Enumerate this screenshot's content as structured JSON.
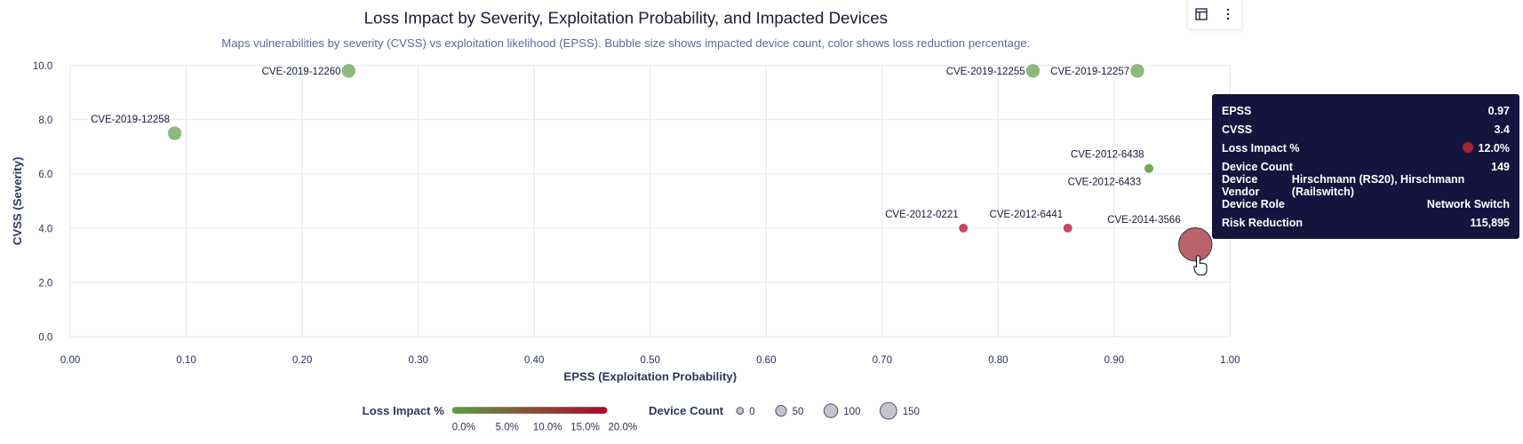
{
  "toolbar": {
    "table_icon": "table-icon",
    "menu_icon": "more-vertical-icon"
  },
  "chart_data": {
    "type": "scatter",
    "title": "Loss Impact by Severity, Exploitation Probability, and Impacted Devices",
    "subtitle": "Maps vulnerabilities by severity (CVSS) vs exploitation likelihood (EPSS). Bubble size shows impacted device count, color shows loss reduction percentage.",
    "xlabel": "EPSS (Exploitation Probability)",
    "ylabel": "CVSS (Severity)",
    "xlim": [
      0,
      1
    ],
    "ylim": [
      0,
      10
    ],
    "xticks": [
      "0.00",
      "0.10",
      "0.20",
      "0.30",
      "0.40",
      "0.50",
      "0.60",
      "0.70",
      "0.80",
      "0.90",
      "1.00"
    ],
    "yticks": [
      "0.0",
      "2.0",
      "4.0",
      "6.0",
      "8.0",
      "10.0"
    ],
    "grid": true,
    "points": [
      {
        "label": "CVE-2019-12260",
        "epss": 0.24,
        "cvss": 9.8,
        "color": "#8cb87c"
      },
      {
        "label": "CVE-2019-12258",
        "epss": 0.09,
        "cvss": 7.5,
        "color": "#8cb87c"
      },
      {
        "label": "CVE-2019-12255",
        "epss": 0.83,
        "cvss": 9.8,
        "color": "#8cb87c"
      },
      {
        "label": "CVE-2019-12257",
        "epss": 0.92,
        "cvss": 9.8,
        "color": "#8cb87c"
      },
      {
        "label": "CVE-2012-6438",
        "epss": 0.93,
        "cvss": 6.2,
        "color": "#6fa85a"
      },
      {
        "label": "CVE-2012-6433",
        "epss": 0.93,
        "cvss": 6.2,
        "color": "#6fa85a"
      },
      {
        "label": "CVE-2012-0221",
        "epss": 0.77,
        "cvss": 4.0,
        "color": "#c9485b"
      },
      {
        "label": "CVE-2012-6441",
        "epss": 0.86,
        "cvss": 4.0,
        "color": "#c9485b"
      },
      {
        "label": "CVE-2014-3566",
        "epss": 0.97,
        "cvss": 3.4,
        "color": "#b9646a",
        "device_count": 149,
        "loss_impact": "12.0%"
      }
    ],
    "legend": {
      "color_title": "Loss Impact %",
      "color_ticks": [
        "0.0%",
        "5.0%",
        "10.0%",
        "15.0%",
        "20.0%"
      ],
      "color_range": [
        "#5a9e45",
        "#b0062a"
      ],
      "size_title": "Device Count",
      "size_ticks": [
        "0",
        "50",
        "100",
        "150"
      ],
      "placement": "bottom"
    }
  },
  "tooltip": {
    "rows": [
      {
        "label": "EPSS",
        "value": "0.97"
      },
      {
        "label": "CVSS",
        "value": "3.4"
      },
      {
        "label": "Loss Impact %",
        "value": "12.0%",
        "dot_color": "#a3262e"
      },
      {
        "label": "Device Count",
        "value": "149"
      },
      {
        "label": "Device Vendor",
        "value": "Hirschmann (RS20), Hirschmann (Railswitch)"
      },
      {
        "label": "Device Role",
        "value": "Network Switch"
      },
      {
        "label": "Risk Reduction",
        "value": "115,895"
      }
    ]
  }
}
